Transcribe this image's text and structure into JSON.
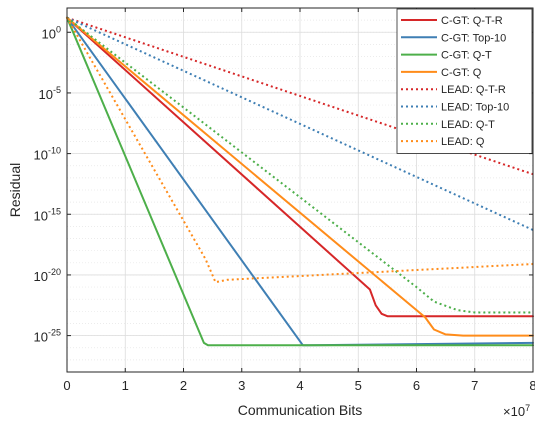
{
  "chart_data": {
    "type": "line",
    "title": "",
    "xlabel": "Communication Bits",
    "ylabel": "Residual",
    "x_multiplier_label": "×10",
    "x_multiplier_exp": "7",
    "xlim": [
      0,
      8
    ],
    "ylim_log10": [
      -28,
      2
    ],
    "y_scale": "log",
    "grid": true,
    "legend_placement": "top-right",
    "x_ticks": [
      {
        "value": 0,
        "label": "0"
      },
      {
        "value": 1,
        "label": "1"
      },
      {
        "value": 2,
        "label": "2"
      },
      {
        "value": 3,
        "label": "3"
      },
      {
        "value": 4,
        "label": "4"
      },
      {
        "value": 5,
        "label": "5"
      },
      {
        "value": 6,
        "label": "6"
      },
      {
        "value": 7,
        "label": "7"
      },
      {
        "value": 8,
        "label": "8"
      }
    ],
    "y_ticks": [
      {
        "value": 0,
        "base": "10",
        "exp": "0"
      },
      {
        "value": -5,
        "base": "10",
        "exp": "-5"
      },
      {
        "value": -10,
        "base": "10",
        "exp": "-10"
      },
      {
        "value": -15,
        "base": "10",
        "exp": "-15"
      },
      {
        "value": -20,
        "base": "10",
        "exp": "-20"
      },
      {
        "value": -25,
        "base": "10",
        "exp": "-25"
      }
    ],
    "series": [
      {
        "name": "C-GT: Q-T-R",
        "color": "#d62728",
        "dash": "solid",
        "x": [
          0,
          5.2,
          5.3,
          5.4,
          5.5,
          5.8,
          8
        ],
        "y_log10": [
          1.2,
          -21.2,
          -22.5,
          -23.2,
          -23.4,
          -23.4,
          -23.4
        ]
      },
      {
        "name": "C-GT: Top-10",
        "color": "#3f7fb4",
        "dash": "solid",
        "x": [
          0,
          4.05,
          4.15,
          8
        ],
        "y_log10": [
          1.2,
          -25.8,
          -25.8,
          -25.6
        ]
      },
      {
        "name": "C-GT: Q-T",
        "color": "#4daf4a",
        "dash": "solid",
        "x": [
          0,
          2.35,
          2.42,
          2.6,
          8
        ],
        "y_log10": [
          1.2,
          -25.6,
          -25.8,
          -25.8,
          -25.8
        ]
      },
      {
        "name": "C-GT: Q",
        "color": "#ff8c1a",
        "dash": "solid",
        "x": [
          0,
          6.15,
          6.3,
          6.5,
          6.8,
          8
        ],
        "y_log10": [
          1.2,
          -23.5,
          -24.5,
          -24.9,
          -25.0,
          -25.0
        ]
      },
      {
        "name": "LEAD: Q-T-R",
        "color": "#d62728",
        "dash": "dotted",
        "x": [
          0,
          8
        ],
        "y_log10": [
          1.2,
          -11.7
        ]
      },
      {
        "name": "LEAD: Top-10",
        "color": "#3f7fb4",
        "dash": "dotted",
        "x": [
          0,
          8
        ],
        "y_log10": [
          1.2,
          -16.3
        ]
      },
      {
        "name": "LEAD: Q-T",
        "color": "#4daf4a",
        "dash": "dotted",
        "x": [
          0,
          6.0,
          6.3,
          6.7,
          7.0,
          8
        ],
        "y_log10": [
          1.2,
          -21.0,
          -22.2,
          -22.9,
          -23.1,
          -23.1
        ]
      },
      {
        "name": "LEAD: Q",
        "color": "#ff8c1a",
        "dash": "dotted",
        "x": [
          0,
          2.38,
          2.55,
          2.75,
          8
        ],
        "y_log10": [
          1.2,
          -18.7,
          -20.6,
          -20.4,
          -19.1
        ]
      }
    ]
  }
}
